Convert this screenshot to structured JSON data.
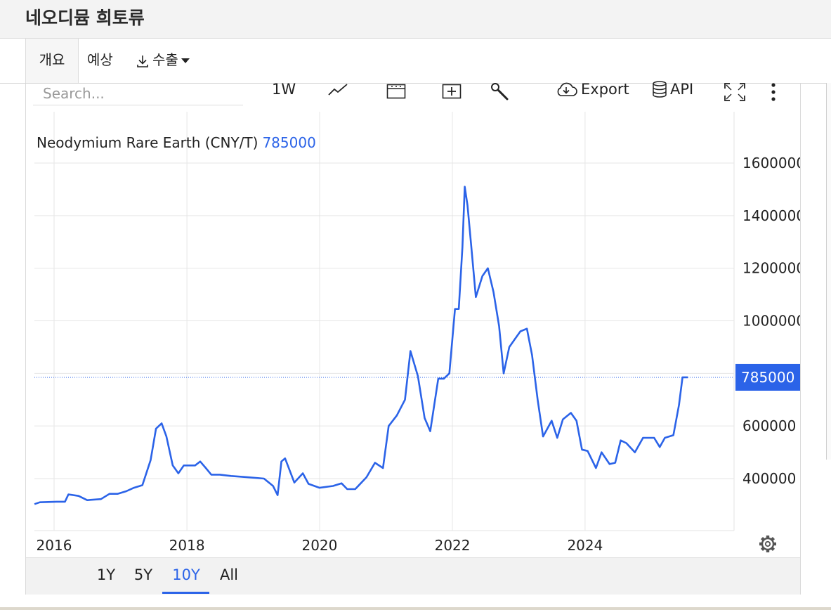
{
  "page": {
    "title": "네오디뮴 희토류"
  },
  "tabs": [
    {
      "label": "개요"
    },
    {
      "label": "예상"
    },
    {
      "label": "수출"
    }
  ],
  "toolbar": {
    "search_placeholder": "Search...",
    "interval_label": "1W",
    "export_label": "Export",
    "api_label": "API"
  },
  "chart_data": {
    "type": "line",
    "title": "Neodymium Rare Earth (CNY/T)",
    "last_value_label": "785000",
    "series": [
      {
        "name": "Neodymium Rare Earth (CNY/T)",
        "color": "#2b63e8",
        "points": [
          [
            "2015-09-15",
            303000
          ],
          [
            "2015-10-15",
            310000
          ],
          [
            "2016-01-15",
            312000
          ],
          [
            "2016-03-01",
            312000
          ],
          [
            "2016-03-20",
            340000
          ],
          [
            "2016-05-15",
            334000
          ],
          [
            "2016-07-01",
            318000
          ],
          [
            "2016-09-15",
            322000
          ],
          [
            "2016-11-01",
            342000
          ],
          [
            "2016-12-15",
            342000
          ],
          [
            "2017-02-01",
            352000
          ],
          [
            "2017-03-15",
            365000
          ],
          [
            "2017-05-01",
            375000
          ],
          [
            "2017-06-15",
            470000
          ],
          [
            "2017-07-15",
            590000
          ],
          [
            "2017-08-15",
            610000
          ],
          [
            "2017-09-10",
            560000
          ],
          [
            "2017-10-15",
            450000
          ],
          [
            "2017-11-15",
            420000
          ],
          [
            "2017-12-15",
            450000
          ],
          [
            "2018-02-15",
            450000
          ],
          [
            "2018-03-15",
            465000
          ],
          [
            "2018-04-15",
            440000
          ],
          [
            "2018-05-15",
            415000
          ],
          [
            "2018-07-01",
            415000
          ],
          [
            "2018-09-01",
            410000
          ],
          [
            "2018-12-01",
            405000
          ],
          [
            "2019-03-01",
            400000
          ],
          [
            "2019-04-20",
            372000
          ],
          [
            "2019-05-15",
            337000
          ],
          [
            "2019-06-05",
            465000
          ],
          [
            "2019-06-25",
            477000
          ],
          [
            "2019-08-15",
            385000
          ],
          [
            "2019-10-01",
            420000
          ],
          [
            "2019-11-01",
            380000
          ],
          [
            "2020-01-01",
            365000
          ],
          [
            "2020-03-15",
            372000
          ],
          [
            "2020-05-01",
            382000
          ],
          [
            "2020-06-01",
            360000
          ],
          [
            "2020-07-15",
            360000
          ],
          [
            "2020-09-15",
            405000
          ],
          [
            "2020-11-01",
            460000
          ],
          [
            "2020-12-15",
            440000
          ],
          [
            "2021-01-15",
            600000
          ],
          [
            "2021-03-01",
            640000
          ],
          [
            "2021-04-15",
            700000
          ],
          [
            "2021-05-15",
            885000
          ],
          [
            "2021-06-25",
            790000
          ],
          [
            "2021-08-01",
            630000
          ],
          [
            "2021-09-01",
            580000
          ],
          [
            "2021-10-15",
            780000
          ],
          [
            "2021-11-15",
            780000
          ],
          [
            "2021-12-15",
            800000
          ],
          [
            "2022-01-15",
            1045000
          ],
          [
            "2022-02-05",
            1045000
          ],
          [
            "2022-02-25",
            1280000
          ],
          [
            "2022-03-10",
            1510000
          ],
          [
            "2022-03-25",
            1440000
          ],
          [
            "2022-04-15",
            1280000
          ],
          [
            "2022-05-10",
            1090000
          ],
          [
            "2022-06-15",
            1170000
          ],
          [
            "2022-07-15",
            1200000
          ],
          [
            "2022-08-15",
            1110000
          ],
          [
            "2022-09-15",
            980000
          ],
          [
            "2022-10-10",
            800000
          ],
          [
            "2022-11-10",
            900000
          ],
          [
            "2022-12-10",
            930000
          ],
          [
            "2023-01-10",
            960000
          ],
          [
            "2023-02-15",
            970000
          ],
          [
            "2023-03-15",
            870000
          ],
          [
            "2023-04-15",
            700000
          ],
          [
            "2023-05-15",
            560000
          ],
          [
            "2023-07-01",
            620000
          ],
          [
            "2023-08-01",
            555000
          ],
          [
            "2023-09-01",
            625000
          ],
          [
            "2023-10-15",
            650000
          ],
          [
            "2023-11-15",
            620000
          ],
          [
            "2023-12-15",
            510000
          ],
          [
            "2024-01-15",
            505000
          ],
          [
            "2024-03-01",
            440000
          ],
          [
            "2024-04-01",
            500000
          ],
          [
            "2024-05-15",
            455000
          ],
          [
            "2024-06-15",
            460000
          ],
          [
            "2024-07-15",
            545000
          ],
          [
            "2024-08-15",
            535000
          ],
          [
            "2024-10-01",
            500000
          ],
          [
            "2024-11-15",
            555000
          ],
          [
            "2025-01-15",
            555000
          ],
          [
            "2025-02-15",
            520000
          ],
          [
            "2025-03-15",
            555000
          ],
          [
            "2025-05-01",
            565000
          ],
          [
            "2025-06-01",
            680000
          ],
          [
            "2025-06-20",
            785000
          ],
          [
            "2025-07-20",
            785000
          ]
        ]
      }
    ],
    "x_ticks": [
      "2016",
      "2018",
      "2020",
      "2022",
      "2024"
    ],
    "y_ticks": [
      400000,
      600000,
      1000000,
      1200000,
      1400000,
      1600000
    ],
    "y_tick_labels": [
      "400000",
      "600000",
      "1000000",
      "1200000",
      "1400000",
      "1600000"
    ],
    "ylim": [
      200000,
      1800000
    ],
    "grid": true,
    "legend": "top-left"
  },
  "range_buttons": [
    {
      "label": "1Y",
      "active": false
    },
    {
      "label": "5Y",
      "active": false
    },
    {
      "label": "10Y",
      "active": true
    },
    {
      "label": "All",
      "active": false
    }
  ],
  "colors": {
    "series": "#2b63e8",
    "last_value_bg": "#2b63e8",
    "grid": "#e6e6e6"
  }
}
